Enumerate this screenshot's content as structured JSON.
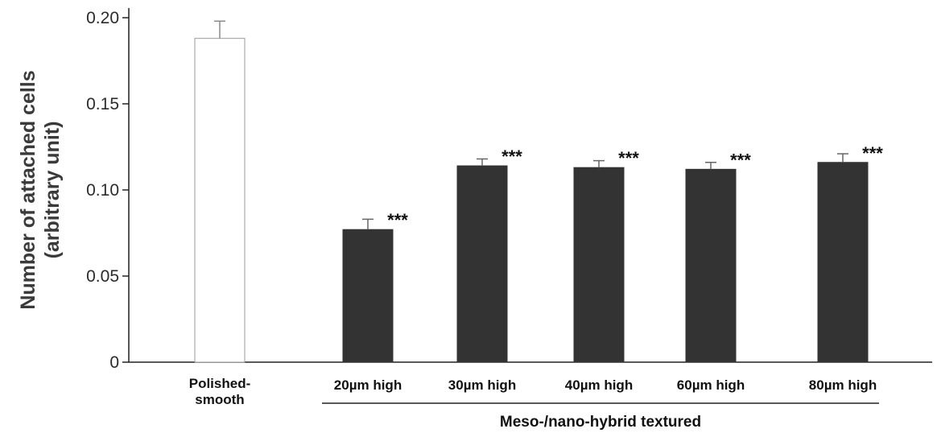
{
  "chart_data": {
    "type": "bar",
    "categories": [
      [
        "Polished-",
        "smooth"
      ],
      [
        "20µm high"
      ],
      [
        "30µm high"
      ],
      [
        "40µm high"
      ],
      [
        "60µm high"
      ],
      [
        "80µm high"
      ]
    ],
    "values": [
      0.188,
      0.077,
      0.114,
      0.113,
      0.112,
      0.116
    ],
    "errors": [
      0.01,
      0.006,
      0.004,
      0.004,
      0.004,
      0.005
    ],
    "significance": [
      "",
      "***",
      "***",
      "***",
      "***",
      "***"
    ],
    "bar_colors": [
      "#ffffff",
      "#333333",
      "#333333",
      "#333333",
      "#333333",
      "#333333"
    ],
    "ylabel": [
      "Number of attached cells",
      "(arbitrary unit)"
    ],
    "yticks": [
      "0",
      "0.05",
      "0.10",
      "0.15",
      "0.20"
    ],
    "ytick_values": [
      0,
      0.05,
      0.1,
      0.15,
      0.2
    ],
    "ylim": [
      0,
      0.2
    ],
    "group_label": "Meso-/nano-hybrid textured",
    "group_span": [
      1,
      5
    ],
    "grid": false,
    "legend": "none"
  }
}
